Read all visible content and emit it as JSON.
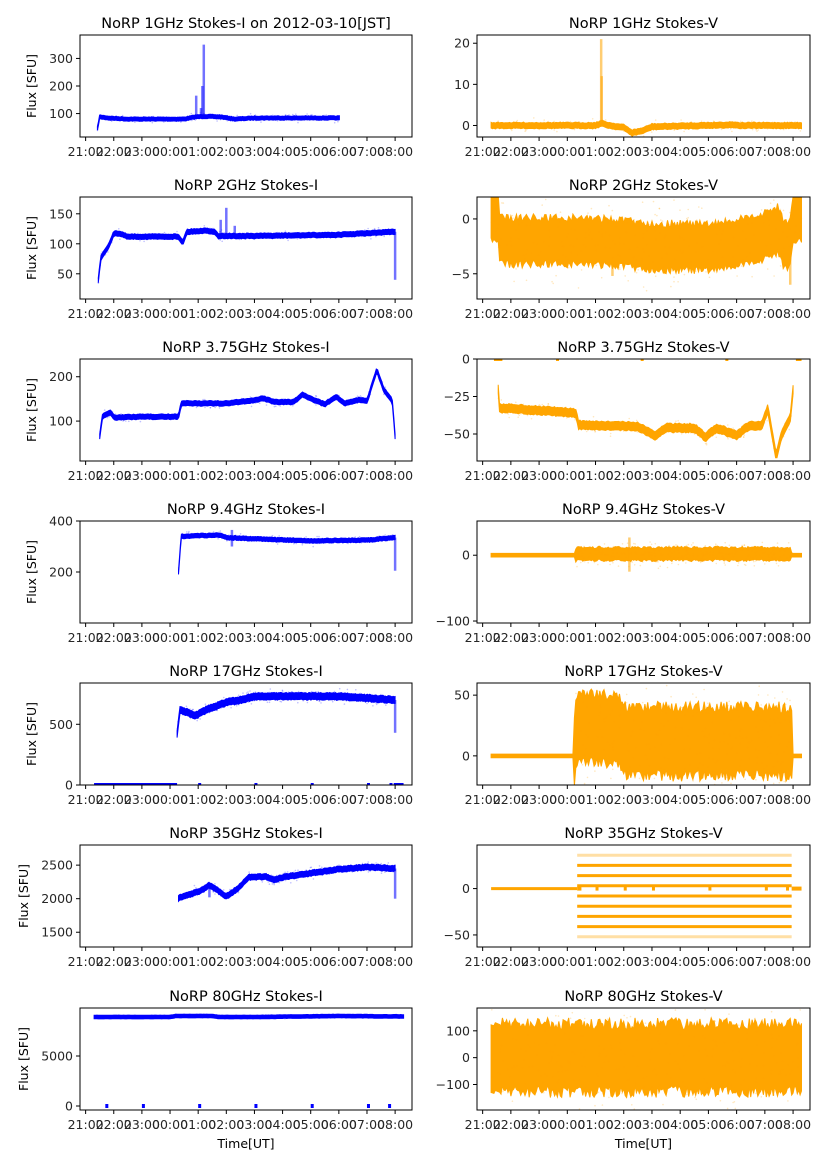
{
  "chart_data": [
    {
      "type": "scatter",
      "title": "NoRP 1GHz Stokes-I on 2012-03-10[JST]",
      "ylabel": "Flux [SFU]",
      "xlabel": "",
      "color": "#0000ff",
      "ylim": [
        15,
        385
      ],
      "yticks": [
        100,
        200,
        300
      ],
      "start": 0.42,
      "end": 9.02,
      "baseline": [
        [
          0.42,
          45
        ],
        [
          0.5,
          88
        ],
        [
          0.8,
          84
        ],
        [
          1.5,
          80
        ],
        [
          3.5,
          80
        ],
        [
          3.9,
          88
        ],
        [
          4.2,
          90
        ],
        [
          4.8,
          88
        ],
        [
          5.3,
          80
        ],
        [
          6,
          84
        ],
        [
          9.02,
          84
        ]
      ],
      "noise": 5,
      "spikes": [
        [
          3.93,
          165
        ],
        [
          4.1,
          120
        ],
        [
          4.2,
          350
        ],
        [
          4.15,
          200
        ]
      ],
      "zero_dots": []
    },
    {
      "type": "scatter",
      "title": "NoRP 1GHz Stokes-V",
      "ylabel": "",
      "xlabel": "",
      "color": "#ffa500",
      "ylim": [
        -2.8,
        22
      ],
      "yticks": [
        0,
        10,
        20
      ],
      "start": 0.3,
      "end": 11.3,
      "baseline": [
        [
          0.3,
          0
        ],
        [
          4,
          0
        ],
        [
          4.2,
          0.5
        ],
        [
          4.5,
          0
        ],
        [
          5.0,
          -0.5
        ],
        [
          5.3,
          -1.8
        ],
        [
          5.7,
          -1.2
        ],
        [
          6,
          -0.3
        ],
        [
          9,
          0.2
        ],
        [
          9.03,
          0
        ],
        [
          11.3,
          0
        ]
      ],
      "noise": 0.5,
      "spikes": [
        [
          4.2,
          21
        ],
        [
          4.22,
          12
        ]
      ],
      "zero_dots": []
    },
    {
      "type": "scatter",
      "title": "NoRP 2GHz Stokes-I",
      "ylabel": "Flux [SFU]",
      "xlabel": "",
      "color": "#0000ff",
      "ylim": [
        8,
        178
      ],
      "yticks": [
        50,
        100,
        150
      ],
      "start": 0.45,
      "end": 11.0,
      "baseline": [
        [
          0.45,
          40
        ],
        [
          0.55,
          78
        ],
        [
          0.8,
          95
        ],
        [
          1.0,
          117
        ],
        [
          1.2,
          117
        ],
        [
          1.5,
          112
        ],
        [
          3.3,
          112
        ],
        [
          3.45,
          102
        ],
        [
          3.6,
          120
        ],
        [
          4.3,
          122
        ],
        [
          4.6,
          120
        ],
        [
          4.7,
          113
        ],
        [
          6,
          113
        ],
        [
          9,
          115
        ],
        [
          11,
          120
        ]
      ],
      "noise": 3,
      "spikes": [
        [
          4.8,
          140
        ],
        [
          5.0,
          160
        ],
        [
          5.3,
          130
        ],
        [
          11.0,
          40
        ]
      ],
      "zero_dots": []
    },
    {
      "type": "scatter",
      "title": "NoRP 2GHz Stokes-V",
      "ylabel": "",
      "xlabel": "",
      "color": "#ffa500",
      "ylim": [
        -7.3,
        2.0
      ],
      "yticks": [
        -5,
        0
      ],
      "start": 0.3,
      "end": 11.3,
      "baseline": [
        [
          0.3,
          0
        ],
        [
          0.55,
          0
        ],
        [
          0.6,
          -2
        ],
        [
          3.5,
          -2
        ],
        [
          4.5,
          -2.1
        ],
        [
          6,
          -2.5
        ],
        [
          8,
          -2.6
        ],
        [
          9.5,
          -2
        ],
        [
          10.5,
          -1
        ],
        [
          10.7,
          -2.5
        ],
        [
          10.9,
          -2
        ],
        [
          11.0,
          0
        ],
        [
          11.3,
          0
        ]
      ],
      "noise": 1.5,
      "spikes": [
        [
          4.6,
          -5.2
        ],
        [
          10.9,
          -6
        ]
      ],
      "zero_dots": []
    },
    {
      "type": "scatter",
      "title": "NoRP 3.75GHz Stokes-I",
      "ylabel": "Flux [SFU]",
      "xlabel": "",
      "color": "#0000ff",
      "ylim": [
        10,
        240
      ],
      "yticks": [
        100,
        200
      ],
      "start": 0.5,
      "end": 11.0,
      "baseline": [
        [
          0.5,
          65
        ],
        [
          0.6,
          112
        ],
        [
          0.9,
          120
        ],
        [
          1.0,
          108
        ],
        [
          2,
          110
        ],
        [
          3.3,
          110
        ],
        [
          3.4,
          140
        ],
        [
          5,
          140
        ],
        [
          6,
          147
        ],
        [
          6.3,
          152
        ],
        [
          6.7,
          143
        ],
        [
          7.4,
          143
        ],
        [
          7.7,
          160
        ],
        [
          8.1,
          148
        ],
        [
          8.5,
          138
        ],
        [
          8.9,
          155
        ],
        [
          9.2,
          140
        ],
        [
          9.7,
          148
        ],
        [
          10,
          145
        ],
        [
          10.35,
          215
        ],
        [
          10.6,
          170
        ],
        [
          10.9,
          145
        ],
        [
          11.0,
          65
        ]
      ],
      "noise": 4,
      "spikes": [],
      "zero_dots": []
    },
    {
      "type": "scatter",
      "title": "NoRP 3.75GHz Stokes-V",
      "ylabel": "",
      "xlabel": "",
      "color": "#ffa500",
      "ylim": [
        -68,
        0
      ],
      "yticks": [
        -50,
        -25,
        0
      ],
      "start": 0.55,
      "end": 11.0,
      "baseline": [
        [
          0.55,
          -20
        ],
        [
          0.6,
          -33
        ],
        [
          1.0,
          -33
        ],
        [
          3.3,
          -36
        ],
        [
          3.4,
          -44
        ],
        [
          5.5,
          -45
        ],
        [
          6.1,
          -51
        ],
        [
          6.5,
          -46
        ],
        [
          7.5,
          -46
        ],
        [
          7.9,
          -52
        ],
        [
          8.3,
          -46
        ],
        [
          9.0,
          -51
        ],
        [
          9.4,
          -45
        ],
        [
          9.9,
          -44
        ],
        [
          10.1,
          -33
        ],
        [
          10.4,
          -65
        ],
        [
          10.6,
          -50
        ],
        [
          10.9,
          -40
        ],
        [
          11.0,
          -20
        ]
      ],
      "noise": 2,
      "spikes": [],
      "zero_dots": [
        [
          0.4,
          0.7
        ],
        [
          2.6,
          2.7
        ],
        [
          5.6,
          5.7
        ],
        [
          8.6,
          8.7
        ],
        [
          11.1,
          11.3
        ]
      ]
    },
    {
      "type": "scatter",
      "title": "NoRP 9.4GHz Stokes-I",
      "ylabel": "Flux [SFU]",
      "xlabel": "",
      "color": "#0000ff",
      "ylim": [
        0,
        400
      ],
      "yticks": [
        200,
        400
      ],
      "start": 3.3,
      "end": 11.0,
      "baseline": [
        [
          3.3,
          200
        ],
        [
          3.4,
          340
        ],
        [
          4.8,
          345
        ],
        [
          5.0,
          335
        ],
        [
          6,
          330
        ],
        [
          8,
          322
        ],
        [
          10,
          325
        ],
        [
          11.0,
          335
        ]
      ],
      "noise": 6,
      "spikes": [
        [
          5.2,
          365
        ],
        [
          5.2,
          300
        ],
        [
          11.0,
          205
        ]
      ],
      "zero_dots": []
    },
    {
      "type": "scatter",
      "title": "NoRP 9.4GHz Stokes-V",
      "ylabel": "",
      "xlabel": "",
      "color": "#ffa500",
      "ylim": [
        -103,
        52
      ],
      "yticks": [
        -100,
        0
      ],
      "start": 0.3,
      "end": 11.3,
      "baseline": [
        [
          0.3,
          0
        ],
        [
          3.3,
          0
        ],
        [
          3.35,
          2
        ],
        [
          10.9,
          2
        ],
        [
          11.0,
          0
        ],
        [
          11.3,
          0
        ]
      ],
      "noise": 7,
      "noise_start": 3.3,
      "noise_end": 10.95,
      "spikes": [
        [
          5.2,
          27
        ],
        [
          5.2,
          -25
        ]
      ],
      "zero_dots": []
    },
    {
      "type": "scatter",
      "title": "NoRP 17GHz Stokes-I",
      "ylabel": "Flux [SFU]",
      "xlabel": "",
      "color": "#0000ff",
      "ylim": [
        0,
        840
      ],
      "yticks": [
        0,
        500
      ],
      "start": 3.25,
      "end": 11.0,
      "baseline": [
        [
          3.25,
          420
        ],
        [
          3.35,
          620
        ],
        [
          3.6,
          600
        ],
        [
          3.9,
          570
        ],
        [
          4.3,
          620
        ],
        [
          5.0,
          680
        ],
        [
          5.5,
          700
        ],
        [
          6,
          730
        ],
        [
          9,
          730
        ],
        [
          11.0,
          700
        ]
      ],
      "noise": 20,
      "spikes": [
        [
          11.0,
          430
        ]
      ],
      "zero_dots": [
        [
          0.3,
          3.25
        ],
        [
          4.0,
          4.05
        ],
        [
          6.0,
          6.05
        ],
        [
          8.0,
          8.05
        ],
        [
          10.0,
          10.05
        ],
        [
          10.8,
          10.85
        ],
        [
          10.95,
          11.3
        ]
      ]
    },
    {
      "type": "scatter",
      "title": "NoRP 17GHz Stokes-V",
      "ylabel": "",
      "xlabel": "",
      "color": "#ffa500",
      "ylim": [
        -24,
        60
      ],
      "yticks": [
        0,
        50
      ],
      "start": 0.3,
      "end": 11.3,
      "baseline": [
        [
          0.3,
          0
        ],
        [
          3.25,
          0
        ],
        [
          3.3,
          22
        ],
        [
          4.85,
          22
        ],
        [
          4.9,
          12
        ],
        [
          10.95,
          12
        ],
        [
          11.0,
          0
        ],
        [
          11.3,
          0
        ]
      ],
      "noise": 20,
      "noise_start": 3.25,
      "noise_end": 10.97,
      "spikes": [],
      "zero_dots": []
    },
    {
      "type": "scatter",
      "title": "NoRP 35GHz Stokes-I",
      "ylabel": "Flux [SFU]",
      "xlabel": "",
      "color": "#0000ff",
      "ylim": [
        1280,
        2800
      ],
      "yticks": [
        1500,
        2000,
        2500
      ],
      "start": 3.3,
      "end": 11.0,
      "baseline": [
        [
          3.3,
          2010
        ],
        [
          3.6,
          2050
        ],
        [
          4.1,
          2120
        ],
        [
          4.4,
          2200
        ],
        [
          4.7,
          2120
        ],
        [
          5.0,
          2030
        ],
        [
          5.4,
          2150
        ],
        [
          5.8,
          2320
        ],
        [
          6.4,
          2330
        ],
        [
          6.7,
          2280
        ],
        [
          7.0,
          2320
        ],
        [
          8,
          2380
        ],
        [
          9,
          2440
        ],
        [
          10,
          2470
        ],
        [
          11.0,
          2450
        ]
      ],
      "noise": 30,
      "spikes": [
        [
          11.0,
          2000
        ],
        [
          4.4,
          2020
        ]
      ],
      "zero_dots": []
    },
    {
      "type": "scatter",
      "title": "NoRP 35GHz Stokes-V",
      "ylabel": "",
      "xlabel": "",
      "color": "#ffa500",
      "ylim": [
        -63,
        47
      ],
      "yticks": [
        -50,
        0
      ],
      "start": 0.3,
      "end": 11.3,
      "bands": [
        36,
        25,
        14,
        3,
        -8,
        -19,
        -30,
        -41,
        -52
      ],
      "band_start": 3.35,
      "band_end": 10.95,
      "baseline": [
        [
          0.3,
          0
        ],
        [
          3.35,
          0
        ]
      ],
      "noise": 0,
      "spikes": [],
      "zero_dots": [
        [
          3.35,
          3.5
        ],
        [
          4.0,
          4.1
        ],
        [
          5.0,
          5.1
        ],
        [
          6.0,
          6.1
        ],
        [
          8.0,
          8.1
        ],
        [
          10.0,
          10.1
        ],
        [
          10.75,
          10.85
        ],
        [
          10.95,
          11.3
        ]
      ]
    },
    {
      "type": "scatter",
      "title": "NoRP 80GHz Stokes-I",
      "ylabel": "Flux [SFU]",
      "xlabel": "Time[UT]",
      "color": "#0000ff",
      "ylim": [
        -400,
        9800
      ],
      "yticks": [
        0,
        5000
      ],
      "start": 0.3,
      "end": 11.3,
      "baseline": [
        [
          0.3,
          8900
        ],
        [
          3,
          8900
        ],
        [
          3.2,
          9000
        ],
        [
          4.5,
          9000
        ],
        [
          4.7,
          8900
        ],
        [
          6,
          8900
        ],
        [
          9,
          9000
        ],
        [
          11.3,
          8950
        ]
      ],
      "noise": 60,
      "spikes": [],
      "zero_dots": [
        [
          0.7,
          0.8
        ],
        [
          2.0,
          2.05
        ],
        [
          4.0,
          4.05
        ],
        [
          6.0,
          6.05
        ],
        [
          8.0,
          8.05
        ],
        [
          10.0,
          10.05
        ],
        [
          10.75,
          10.8
        ]
      ]
    },
    {
      "type": "scatter",
      "title": "NoRP 80GHz Stokes-V",
      "ylabel": "",
      "xlabel": "Time[UT]",
      "color": "#ffa500",
      "ylim": [
        -195,
        185
      ],
      "yticks": [
        -100,
        0,
        100
      ],
      "start": 0.3,
      "end": 11.3,
      "baseline": [
        [
          0.3,
          0
        ],
        [
          11.3,
          0
        ]
      ],
      "noise": 90,
      "spikes": [],
      "zero_dots": []
    }
  ],
  "xticks": [
    "21:00",
    "22:00",
    "23:00",
    "00:00",
    "01:00",
    "02:00",
    "03:00",
    "04:00",
    "05:00",
    "06:00",
    "07:00",
    "08:00"
  ],
  "xlim_hours_from_2100": [
    -0.2,
    11.6
  ]
}
